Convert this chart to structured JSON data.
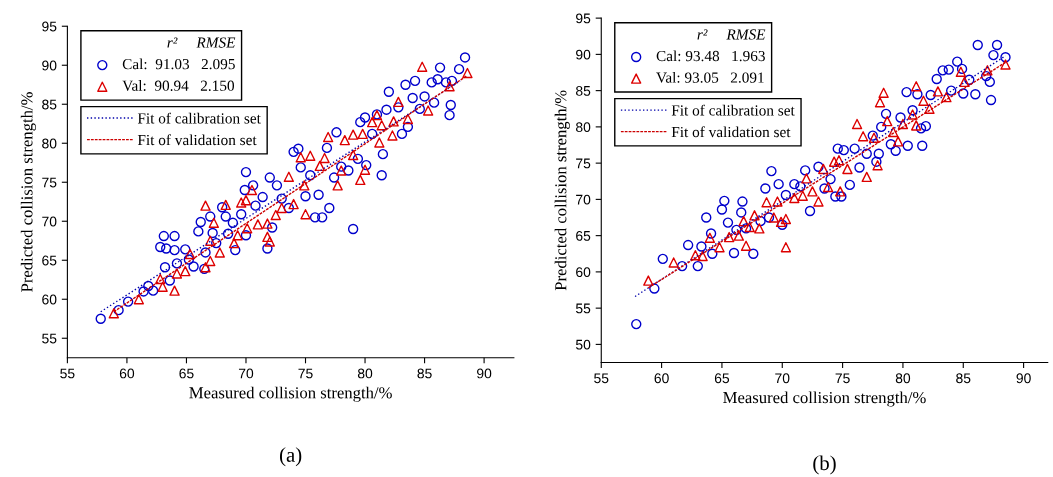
{
  "chart_data": [
    {
      "type": "scatter",
      "xlabel": "Measured collision strength/%",
      "ylabel": "Predicted collision strength/%",
      "legend_title": "r²     RMSE",
      "legend": "top left",
      "grid": false,
      "xlim": [
        55,
        92.5
      ],
      "xticks": [
        55,
        60,
        65,
        70,
        75,
        80,
        85,
        90
      ],
      "ylim": [
        52.5,
        95
      ],
      "yticks": [
        55,
        60,
        65,
        70,
        75,
        80,
        85,
        90,
        95
      ],
      "annotations": [
        "(a)"
      ],
      "series": [
        {
          "name": "Cal:  91.03   2.095",
          "marker": "circle",
          "color": "#0000cc",
          "x": [
            57.8,
            59.3,
            60.1,
            61.4,
            61.8,
            62.2,
            62.8,
            63.1,
            63.3,
            63.2,
            63.6,
            64.0,
            64.0,
            64.2,
            64.9,
            65.2,
            65.6,
            66.0,
            66.2,
            66.5,
            66.6,
            67.0,
            67.2,
            67.5,
            68.0,
            68.3,
            68.5,
            68.9,
            69.1,
            69.6,
            69.9,
            70.0,
            70.0,
            70.6,
            70.8,
            71.4,
            71.8,
            72.0,
            72.2,
            72.6,
            73.0,
            73.6,
            74.0,
            74.4,
            74.6,
            75.0,
            75.4,
            75.8,
            76.1,
            76.4,
            76.8,
            77.0,
            77.4,
            77.6,
            78.0,
            78.6,
            79.0,
            79.4,
            79.6,
            80.0,
            80.1,
            80.6,
            81.0,
            81.4,
            81.5,
            81.8,
            82.0,
            82.8,
            83.1,
            83.4,
            83.6,
            84.0,
            84.2,
            84.6,
            85.0,
            85.6,
            85.8,
            86.1,
            86.3,
            86.8,
            87.1,
            87.2,
            87.3,
            87.9,
            88.4
          ],
          "values": [
            57.5,
            58.6,
            59.7,
            61.0,
            61.7,
            61.1,
            66.7,
            68.1,
            66.5,
            64.1,
            62.4,
            68.1,
            66.3,
            64.6,
            66.4,
            65.1,
            64.2,
            68.7,
            69.9,
            63.9,
            66.0,
            70.6,
            68.5,
            67.2,
            71.8,
            70.6,
            68.4,
            69.8,
            66.3,
            70.9,
            74.0,
            76.3,
            68.2,
            74.6,
            72.0,
            73.1,
            66.5,
            75.6,
            69.2,
            74.6,
            72.9,
            71.7,
            78.9,
            79.3,
            76.9,
            73.2,
            75.9,
            70.5,
            73.4,
            70.5,
            79.4,
            71.7,
            75.6,
            81.4,
            77.0,
            76.5,
            69.0,
            78.0,
            82.7,
            83.3,
            77.2,
            81.2,
            83.7,
            75.9,
            78.6,
            84.3,
            86.6,
            84.6,
            81.2,
            87.5,
            82.1,
            85.8,
            88.0,
            84.4,
            86.0,
            87.8,
            85.2,
            88.2,
            89.7,
            87.8,
            83.6,
            84.9,
            88.0,
            89.5,
            91.0
          ]
        },
        {
          "name": "Val:  90.94   2.150",
          "marker": "triangle",
          "color": "#dd0000",
          "x": [
            58.9,
            61.0,
            62.8,
            63.0,
            64.0,
            64.2,
            64.9,
            65.3,
            66.6,
            66.6,
            67.0,
            67.0,
            67.3,
            67.8,
            68.3,
            69.0,
            69.3,
            69.6,
            70.0,
            70.1,
            70.5,
            71.0,
            71.8,
            71.8,
            72.0,
            72.5,
            73.0,
            73.6,
            74.0,
            74.6,
            74.9,
            75.0,
            75.4,
            76.2,
            76.6,
            76.9,
            77.7,
            78.0,
            78.3,
            79.0,
            79.0,
            79.6,
            79.8,
            80.0,
            80.6,
            81.0,
            81.2,
            81.4,
            82.3,
            82.4,
            82.8,
            83.6,
            84.8,
            85.3,
            87.1,
            88.6
          ],
          "values": [
            58.2,
            60.0,
            62.6,
            61.6,
            61.1,
            63.3,
            63.6,
            65.8,
            72.0,
            64.1,
            64.9,
            67.5,
            69.8,
            66.0,
            72.1,
            67.2,
            68.2,
            72.4,
            72.7,
            69.1,
            74.0,
            69.6,
            69.7,
            68.0,
            67.4,
            70.8,
            71.7,
            75.7,
            72.2,
            78.2,
            74.6,
            70.9,
            78.4,
            77.1,
            78.1,
            80.8,
            74.6,
            76.5,
            80.4,
            81.1,
            78.5,
            75.3,
            81.2,
            76.6,
            82.7,
            83.6,
            80.1,
            82.3,
            81.0,
            82.8,
            85.3,
            83.1,
            89.8,
            84.2,
            87.3,
            89.0
          ]
        },
        {
          "name": "Fit of calibration set",
          "type": "line",
          "line_style": "dotted",
          "color": "#0000aa",
          "x": [
            57.8,
            88.0
          ],
          "values": [
            58.4,
            88.0
          ]
        },
        {
          "name": "Fit of validation set",
          "type": "line",
          "line_style": "dashed",
          "color": "#cc0000",
          "x": [
            58.9,
            88.5
          ],
          "values": [
            58.4,
            88.6
          ]
        }
      ]
    },
    {
      "type": "scatter",
      "xlabel": "Measured collision strength/%",
      "ylabel": "Predicted collision strength/%",
      "legend_title": "r²     RMSE",
      "legend": "top left",
      "grid": false,
      "xlim": [
        55,
        92
      ],
      "xticks": [
        55,
        60,
        65,
        70,
        75,
        80,
        85,
        90
      ],
      "ylim": [
        47.5,
        95
      ],
      "yticks": [
        50,
        55,
        60,
        65,
        70,
        75,
        80,
        85,
        90,
        95
      ],
      "annotations": [
        "(b)"
      ],
      "series": [
        {
          "name": "Cal: 93.48   1.963",
          "marker": "circle",
          "color": "#0000cc",
          "x": [
            57.9,
            59.4,
            60.1,
            61.7,
            62.2,
            63.0,
            63.3,
            63.7,
            64.1,
            64.2,
            65.0,
            65.2,
            65.5,
            66.0,
            66.2,
            66.6,
            66.7,
            67.0,
            67.6,
            68.2,
            68.6,
            68.9,
            69.1,
            69.7,
            70.0,
            70.3,
            71.0,
            71.5,
            71.9,
            72.3,
            73.0,
            73.5,
            74.0,
            74.4,
            74.6,
            74.9,
            75.1,
            75.6,
            76.0,
            76.4,
            77.0,
            77.5,
            77.8,
            78.0,
            78.2,
            78.6,
            79.0,
            79.4,
            79.8,
            80.4,
            80.3,
            80.8,
            81.2,
            81.5,
            81.6,
            81.9,
            82.3,
            82.8,
            83.3,
            83.8,
            84.0,
            84.5,
            84.9,
            85.0,
            85.5,
            86.0,
            86.2,
            86.9,
            87.2,
            87.3,
            87.5,
            87.8,
            88.5
          ],
          "values": [
            52.8,
            57.7,
            61.8,
            60.8,
            63.7,
            60.8,
            63.5,
            67.5,
            65.3,
            62.5,
            68.6,
            69.8,
            66.8,
            62.6,
            65.8,
            68.2,
            69.7,
            66.0,
            62.5,
            67.0,
            71.5,
            67.5,
            73.9,
            72.1,
            66.5,
            70.6,
            72.1,
            71.8,
            74.0,
            68.4,
            74.5,
            71.5,
            72.8,
            70.4,
            77.0,
            70.4,
            76.8,
            72.0,
            77.0,
            74.4,
            76.3,
            78.8,
            75.2,
            76.3,
            80.0,
            81.8,
            77.6,
            76.7,
            81.3,
            77.4,
            84.8,
            82.3,
            84.5,
            79.8,
            77.4,
            80.1,
            84.4,
            86.6,
            87.8,
            87.9,
            85.0,
            89.0,
            88.0,
            84.6,
            86.5,
            84.5,
            91.3,
            87.0,
            86.2,
            83.7,
            89.9,
            91.3,
            89.6
          ]
        },
        {
          "name": "Val: 93.05   2.091",
          "marker": "triangle",
          "color": "#dd0000",
          "x": [
            58.9,
            61.0,
            62.8,
            63.4,
            64.0,
            64.8,
            65.6,
            66.4,
            66.8,
            67.0,
            67.3,
            67.7,
            68.1,
            68.7,
            69.3,
            69.6,
            69.9,
            70.3,
            70.3,
            71.0,
            71.7,
            72.0,
            72.5,
            73.0,
            73.4,
            73.8,
            74.3,
            74.7,
            74.8,
            75.4,
            76.2,
            76.7,
            77.0,
            77.6,
            77.9,
            78.1,
            78.4,
            78.7,
            79.2,
            79.6,
            80.0,
            80.8,
            81.1,
            81.1,
            81.7,
            82.2,
            82.9,
            83.6,
            84.8,
            85.1,
            87.0,
            88.5
          ],
          "values": [
            58.8,
            61.3,
            62.3,
            62.2,
            64.7,
            63.4,
            64.8,
            65.0,
            67.0,
            63.6,
            66.2,
            67.8,
            66.0,
            69.6,
            67.5,
            69.7,
            66.9,
            67.3,
            63.4,
            70.2,
            70.5,
            72.9,
            71.1,
            69.7,
            74.2,
            71.7,
            75.2,
            75.4,
            71.1,
            74.2,
            80.4,
            78.7,
            73.1,
            78.5,
            74.7,
            83.4,
            84.7,
            80.8,
            79.3,
            78.0,
            80.4,
            81.7,
            85.6,
            80.2,
            83.6,
            82.5,
            84.9,
            84.1,
            87.6,
            86.2,
            87.8,
            88.6
          ]
        },
        {
          "name": "Fit of calibration set",
          "type": "line",
          "line_style": "dotted",
          "color": "#0000aa",
          "x": [
            57.8,
            88.5
          ],
          "values": [
            56.6,
            89.8
          ]
        },
        {
          "name": "Fit of validation set",
          "type": "line",
          "line_style": "dashed",
          "color": "#cc0000",
          "x": [
            58.9,
            88.5
          ],
          "values": [
            57.8,
            88.9
          ]
        }
      ]
    }
  ]
}
